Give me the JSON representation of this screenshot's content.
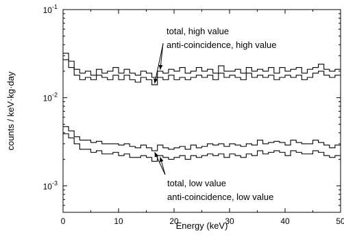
{
  "chart_data": {
    "type": "line",
    "step": true,
    "xlabel": "Energy (keV)",
    "ylabel": "counts / keV·kg·day",
    "xlim": [
      0,
      50
    ],
    "ylim": [
      0.0005,
      0.1
    ],
    "yscale": "log",
    "x_ticks": [
      0,
      10,
      20,
      30,
      40,
      50
    ],
    "x_tick_labels": [
      "0",
      "10",
      "20",
      "30",
      "40",
      "50"
    ],
    "y_ticks": [
      0.001,
      0.01,
      0.1
    ],
    "y_tick_labels": [
      {
        "base": "10",
        "exp": "-3"
      },
      {
        "base": "10",
        "exp": "-2"
      },
      {
        "base": "10",
        "exp": "-1"
      }
    ],
    "grid": false,
    "bin_width": 1,
    "series": [
      {
        "name": "total, high value",
        "values": [
          0.032,
          0.026,
          0.021,
          0.019,
          0.02,
          0.018,
          0.021,
          0.019,
          0.02,
          0.022,
          0.019,
          0.021,
          0.019,
          0.018,
          0.02,
          0.019,
          0.017,
          0.02,
          0.019,
          0.021,
          0.02,
          0.022,
          0.019,
          0.02,
          0.022,
          0.02,
          0.021,
          0.019,
          0.023,
          0.02,
          0.02,
          0.021,
          0.019,
          0.022,
          0.02,
          0.021,
          0.02,
          0.022,
          0.019,
          0.022,
          0.02,
          0.021,
          0.022,
          0.019,
          0.021,
          0.022,
          0.024,
          0.021,
          0.02,
          0.021
        ]
      },
      {
        "name": "anti-coincidence, high value",
        "values": [
          0.027,
          0.022,
          0.018,
          0.016,
          0.017,
          0.016,
          0.018,
          0.017,
          0.016,
          0.018,
          0.016,
          0.018,
          0.016,
          0.015,
          0.017,
          0.016,
          0.014,
          0.017,
          0.016,
          0.018,
          0.016,
          0.017,
          0.016,
          0.017,
          0.018,
          0.017,
          0.018,
          0.016,
          0.019,
          0.017,
          0.018,
          0.017,
          0.016,
          0.019,
          0.017,
          0.018,
          0.017,
          0.018,
          0.016,
          0.017,
          0.018,
          0.017,
          0.018,
          0.016,
          0.017,
          0.019,
          0.02,
          0.018,
          0.017,
          0.018
        ]
      },
      {
        "name": "total, low value",
        "values": [
          0.0047,
          0.0042,
          0.0036,
          0.0033,
          0.0033,
          0.0031,
          0.0032,
          0.003,
          0.003,
          0.003,
          0.0029,
          0.003,
          0.0028,
          0.0027,
          0.0029,
          0.0027,
          0.0025,
          0.0029,
          0.0027,
          0.0026,
          0.0027,
          0.0028,
          0.0026,
          0.0029,
          0.0027,
          0.0028,
          0.003,
          0.0029,
          0.003,
          0.0028,
          0.003,
          0.0029,
          0.0028,
          0.003,
          0.0029,
          0.0033,
          0.003,
          0.0031,
          0.0032,
          0.0031,
          0.0029,
          0.0033,
          0.0031,
          0.003,
          0.003,
          0.0033,
          0.0031,
          0.0029,
          0.0027,
          0.0029
        ]
      },
      {
        "name": "anti-coincidence, low value",
        "values": [
          0.0039,
          0.0035,
          0.003,
          0.0026,
          0.0026,
          0.0024,
          0.0025,
          0.0023,
          0.0023,
          0.0024,
          0.0022,
          0.0023,
          0.0021,
          0.0021,
          0.0022,
          0.0021,
          0.0019,
          0.0022,
          0.0021,
          0.002,
          0.0021,
          0.0022,
          0.002,
          0.0022,
          0.0021,
          0.0022,
          0.0023,
          0.0022,
          0.0023,
          0.0021,
          0.0023,
          0.0022,
          0.0021,
          0.0023,
          0.0022,
          0.0025,
          0.0023,
          0.0024,
          0.0025,
          0.0024,
          0.0022,
          0.0025,
          0.0024,
          0.0023,
          0.0023,
          0.0025,
          0.0024,
          0.0022,
          0.0021,
          0.0022
        ]
      }
    ],
    "annotations": [
      {
        "text": "total, high value",
        "target_series": 0,
        "target_x": 17.5
      },
      {
        "text": "anti-coincidence, high value",
        "target_series": 1,
        "target_x": 16.5
      },
      {
        "text": "total, low value",
        "target_series": 2,
        "target_x": 16.5
      },
      {
        "text": "anti-coincidence, low value",
        "target_series": 3,
        "target_x": 17.5
      }
    ]
  }
}
